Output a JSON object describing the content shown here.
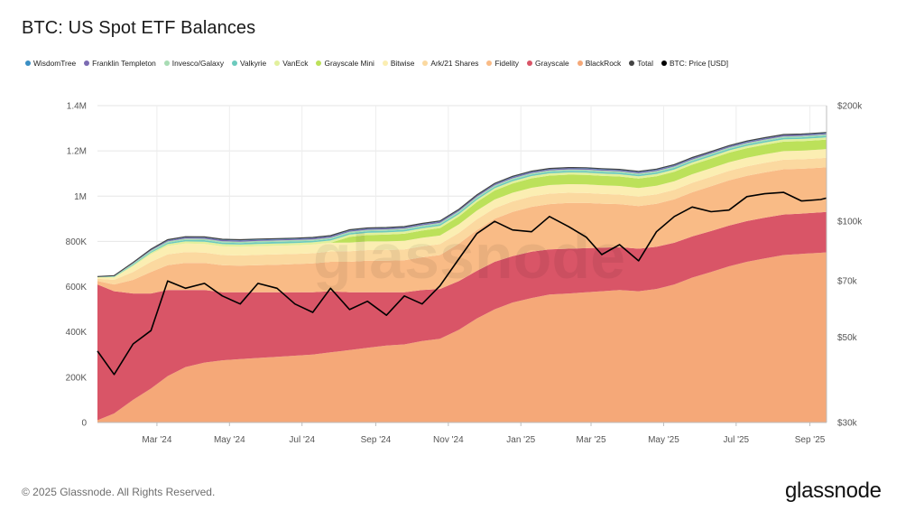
{
  "title": "BTC: US Spot ETF Balances",
  "footer": "© 2025 Glassnode. All Rights Reserved.",
  "brand": "glassnode",
  "watermark": "glassnode",
  "chart_data": {
    "type": "area",
    "title": "BTC: US Spot ETF Balances",
    "legend_position": "top",
    "grid": true,
    "y_left": {
      "ticks": [
        "0",
        "200K",
        "400K",
        "600K",
        "800K",
        "1M",
        "1.2M",
        "1.4M"
      ],
      "range": [
        0,
        1400000
      ]
    },
    "y_right": {
      "scale": "log",
      "ticks": [
        "$30k",
        "$50k",
        "$70k",
        "$100k",
        "$200k"
      ],
      "tick_values": [
        30000,
        50000,
        70000,
        100000,
        200000
      ],
      "range": [
        30000,
        200000
      ]
    },
    "x_ticks": [
      "Mar '24",
      "May '24",
      "Jul '24",
      "Sep '24",
      "Nov '24",
      "Jan '25",
      "Mar '25",
      "May '25",
      "Jul '25",
      "Sep '25"
    ],
    "x_tick_dates": [
      "2024-03-01",
      "2024-05-01",
      "2024-07-01",
      "2024-09-01",
      "2024-11-01",
      "2025-01-01",
      "2025-03-01",
      "2025-05-01",
      "2025-07-01",
      "2025-09-01"
    ],
    "x_range": [
      "2024-01-11",
      "2025-09-15"
    ],
    "dates": [
      "2024-01-11",
      "2024-01-25",
      "2024-02-10",
      "2024-02-25",
      "2024-03-10",
      "2024-03-25",
      "2024-04-10",
      "2024-04-25",
      "2024-05-10",
      "2024-05-25",
      "2024-06-10",
      "2024-06-25",
      "2024-07-10",
      "2024-07-25",
      "2024-08-10",
      "2024-08-25",
      "2024-09-10",
      "2024-09-25",
      "2024-10-10",
      "2024-10-25",
      "2024-11-10",
      "2024-11-25",
      "2024-12-10",
      "2024-12-25",
      "2025-01-10",
      "2025-01-25",
      "2025-02-10",
      "2025-02-25",
      "2025-03-10",
      "2025-03-25",
      "2025-04-10",
      "2025-04-25",
      "2025-05-10",
      "2025-05-25",
      "2025-06-10",
      "2025-06-25",
      "2025-07-10",
      "2025-07-25",
      "2025-08-10",
      "2025-08-25",
      "2025-09-10",
      "2025-09-15"
    ],
    "series": [
      {
        "name": "BlackRock",
        "color": "#f5a878",
        "values": [
          10000,
          40000,
          100000,
          150000,
          205000,
          245000,
          265000,
          275000,
          280000,
          285000,
          290000,
          295000,
          300000,
          310000,
          320000,
          330000,
          340000,
          345000,
          360000,
          370000,
          410000,
          460000,
          500000,
          530000,
          550000,
          565000,
          570000,
          575000,
          580000,
          585000,
          580000,
          590000,
          610000,
          640000,
          665000,
          690000,
          710000,
          725000,
          740000,
          745000,
          750000,
          752000
        ]
      },
      {
        "name": "Grayscale",
        "color": "#d95567",
        "values": [
          600000,
          540000,
          470000,
          420000,
          380000,
          340000,
          320000,
          300000,
          295000,
          290000,
          285000,
          280000,
          275000,
          270000,
          255000,
          245000,
          235000,
          230000,
          225000,
          220000,
          215000,
          210000,
          210000,
          205000,
          205000,
          200000,
          198000,
          195000,
          192000,
          190000,
          188000,
          186000,
          184000,
          182000,
          181000,
          180000,
          180000,
          180000,
          179000,
          178000,
          178000,
          178000
        ]
      },
      {
        "name": "Fidelity",
        "color": "#f9bb86",
        "values": [
          15000,
          30000,
          60000,
          95000,
          110000,
          120000,
          120000,
          120000,
          118000,
          120000,
          122000,
          125000,
          128000,
          130000,
          135000,
          140000,
          140000,
          142000,
          145000,
          150000,
          165000,
          180000,
          190000,
          195000,
          198000,
          200000,
          202000,
          200000,
          195000,
          190000,
          188000,
          190000,
          192000,
          195000,
          198000,
          200000,
          200000,
          200000,
          200000,
          198000,
          198000,
          198000
        ]
      },
      {
        "name": "Ark/21 Shares",
        "color": "#fbd9a0",
        "values": [
          10000,
          20000,
          35000,
          45000,
          48000,
          48000,
          46000,
          45000,
          45000,
          46000,
          46000,
          45000,
          45000,
          46000,
          47000,
          47000,
          47000,
          48000,
          48000,
          48000,
          48000,
          48000,
          47000,
          47000,
          46000,
          46000,
          45000,
          44000,
          43000,
          42000,
          42000,
          42000,
          42000,
          42000,
          42000,
          42000,
          42000,
          42000,
          42000,
          42000,
          42000,
          42000
        ]
      },
      {
        "name": "Bitwise",
        "color": "#fbeeb2",
        "values": [
          5000,
          10000,
          25000,
          33000,
          37000,
          38000,
          38000,
          38000,
          38000,
          38000,
          38000,
          38000,
          38000,
          38000,
          38000,
          38000,
          38000,
          38000,
          38000,
          38000,
          38000,
          38000,
          38000,
          38000,
          38000,
          38000,
          38000,
          38000,
          38000,
          38000,
          38000,
          38000,
          38000,
          38000,
          38000,
          38000,
          38000,
          38000,
          38000,
          38000,
          38000,
          38000
        ]
      },
      {
        "name": "Grayscale Mini",
        "color": "#bce15a",
        "values": [
          0,
          0,
          0,
          0,
          0,
          0,
          0,
          0,
          0,
          0,
          0,
          0,
          0,
          0,
          25000,
          28000,
          30000,
          31000,
          32000,
          33000,
          35000,
          38000,
          40000,
          41000,
          42000,
          42000,
          42000,
          42000,
          42000,
          42000,
          42000,
          42000,
          42000,
          42000,
          42000,
          42000,
          42000,
          42000,
          42000,
          42000,
          42000,
          42000
        ]
      },
      {
        "name": "VanEck",
        "color": "#e2f09d",
        "values": [
          2000,
          3000,
          5000,
          7000,
          8000,
          9000,
          9500,
          10000,
          10000,
          10000,
          10000,
          10000,
          10000,
          10000,
          10000,
          10000,
          10000,
          10000,
          10000,
          10000,
          10000,
          10000,
          10000,
          10000,
          10000,
          10000,
          10000,
          10000,
          10000,
          10000,
          10000,
          10000,
          10000,
          10000,
          10000,
          10000,
          10000,
          10000,
          10000,
          10000,
          10000,
          10000
        ]
      },
      {
        "name": "Valkyrie",
        "color": "#6ccabd",
        "values": [
          1000,
          2000,
          4000,
          5000,
          6000,
          6500,
          7000,
          7000,
          7000,
          7000,
          7000,
          7000,
          7000,
          7000,
          7000,
          7000,
          7000,
          7000,
          7000,
          7000,
          7000,
          7000,
          7000,
          7000,
          7000,
          7000,
          7000,
          7000,
          7000,
          7000,
          7000,
          7000,
          7000,
          7000,
          7000,
          7000,
          7000,
          7000,
          7000,
          7000,
          7000,
          7000
        ]
      },
      {
        "name": "Invesco/Galaxy",
        "color": "#a8dcb4",
        "values": [
          1000,
          2000,
          4000,
          5000,
          6000,
          6000,
          6000,
          6000,
          6000,
          6000,
          6000,
          6000,
          6000,
          6000,
          6000,
          6000,
          6000,
          6000,
          6000,
          6000,
          6000,
          6000,
          6000,
          6000,
          6000,
          6000,
          6000,
          6000,
          6000,
          6000,
          6000,
          6000,
          6000,
          6000,
          6000,
          6000,
          6000,
          6000,
          6000,
          6000,
          6000,
          6000
        ]
      },
      {
        "name": "Franklin Templeton",
        "color": "#7b6bb2",
        "values": [
          500,
          1000,
          2000,
          3000,
          4000,
          5000,
          5000,
          5000,
          5000,
          5000,
          5000,
          5000,
          5000,
          5000,
          5000,
          5000,
          5000,
          5000,
          5000,
          5000,
          5000,
          5000,
          5000,
          5000,
          5000,
          5000,
          5000,
          5000,
          5000,
          5000,
          5000,
          5000,
          5000,
          5000,
          5000,
          5000,
          5000,
          5000,
          5000,
          5000,
          5000,
          5000
        ]
      },
      {
        "name": "WisdomTree",
        "color": "#3a8fc4",
        "values": [
          500,
          1000,
          2000,
          3000,
          3500,
          3500,
          3500,
          3500,
          3500,
          3500,
          3500,
          3500,
          3500,
          3500,
          3500,
          3500,
          3500,
          3500,
          3500,
          3500,
          3500,
          3500,
          3500,
          3500,
          3500,
          3500,
          3500,
          3500,
          3500,
          3500,
          3500,
          3500,
          3500,
          3500,
          3500,
          3500,
          3500,
          3500,
          3500,
          3500,
          3500,
          3500
        ]
      }
    ],
    "total": {
      "name": "Total",
      "color": "#444444"
    },
    "price": {
      "name": "BTC: Price [USD]",
      "color": "#000000",
      "axis": "right",
      "values": [
        46000,
        40000,
        48000,
        52000,
        70000,
        67000,
        69000,
        64000,
        61000,
        69000,
        67000,
        61000,
        58000,
        67000,
        59000,
        62000,
        57000,
        64000,
        61000,
        68000,
        80000,
        93000,
        100000,
        95000,
        94000,
        103000,
        97000,
        91000,
        82000,
        87000,
        79000,
        94000,
        103000,
        109000,
        106000,
        107000,
        116000,
        118000,
        119000,
        113000,
        114000,
        115000
      ]
    }
  }
}
